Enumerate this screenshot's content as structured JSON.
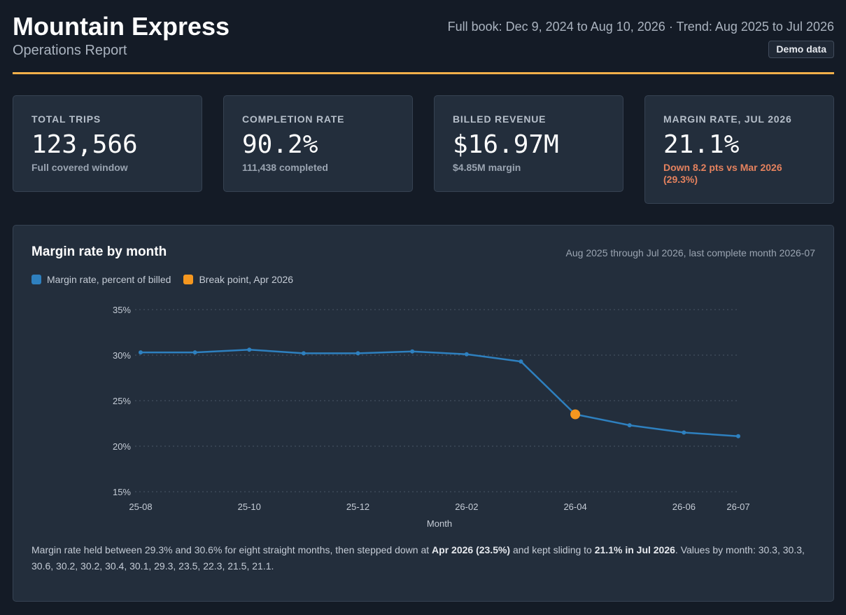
{
  "header": {
    "title": "Mountain Express",
    "subtitle": "Operations Report",
    "range": "Full book: Dec 9, 2024 to Aug 10, 2026 · Trend: Aug 2025 to Jul 2026",
    "badge": "Demo data"
  },
  "kpis": [
    {
      "label": "TOTAL TRIPS",
      "value": "123,566",
      "sub": "Full covered window"
    },
    {
      "label": "COMPLETION RATE",
      "value": "90.2%",
      "sub": "111,438 completed"
    },
    {
      "label": "BILLED REVENUE",
      "value": "$16.97M",
      "sub": "$4.85M margin"
    },
    {
      "label": "MARGIN RATE, JUL 2026",
      "value": "21.1%",
      "sub": "Down 8.2 pts vs Mar 2026 (29.3%)"
    }
  ],
  "panel": {
    "title": "Margin rate by month",
    "meta": "Aug 2025 through Jul 2026, last complete month 2026-07",
    "legend": [
      {
        "label": "Margin rate, percent of billed",
        "color": "#2e80bf"
      },
      {
        "label": "Break point, Apr 2026",
        "color": "#f5971f"
      }
    ],
    "summary": {
      "part1": "Margin rate held between 29.3% and 30.6% for eight straight months, then stepped down at ",
      "bold1": "Apr 2026 (23.5%)",
      "part2": " and kept sliding to ",
      "bold2": "21.1% in Jul 2026",
      "part3": ". Values by month: 30.3, 30.3, 30.6, 30.2, 30.2, 30.4, 30.1, 29.3, 23.5, 22.3, 21.5, 21.1."
    }
  },
  "chart_data": {
    "type": "line",
    "x": [
      "25-08",
      "25-09",
      "25-10",
      "25-11",
      "25-12",
      "26-01",
      "26-02",
      "26-03",
      "26-04",
      "26-05",
      "26-06",
      "26-07"
    ],
    "x_tick_labels": [
      "25-08",
      "25-10",
      "25-12",
      "26-02",
      "26-04",
      "26-06",
      "26-07"
    ],
    "series": [
      {
        "name": "Margin rate, percent of billed",
        "values": [
          30.3,
          30.3,
          30.6,
          30.2,
          30.2,
          30.4,
          30.1,
          29.3,
          23.5,
          22.3,
          21.5,
          21.1
        ],
        "color": "#2e80bf"
      }
    ],
    "highlight": {
      "x": "26-04",
      "value": 23.5,
      "color": "#f5971f"
    },
    "y_ticks": [
      "15%",
      "20%",
      "25%",
      "30%",
      "35%"
    ],
    "ylim": [
      15,
      35
    ],
    "xlabel": "Month",
    "ylabel": "",
    "grid": true
  }
}
